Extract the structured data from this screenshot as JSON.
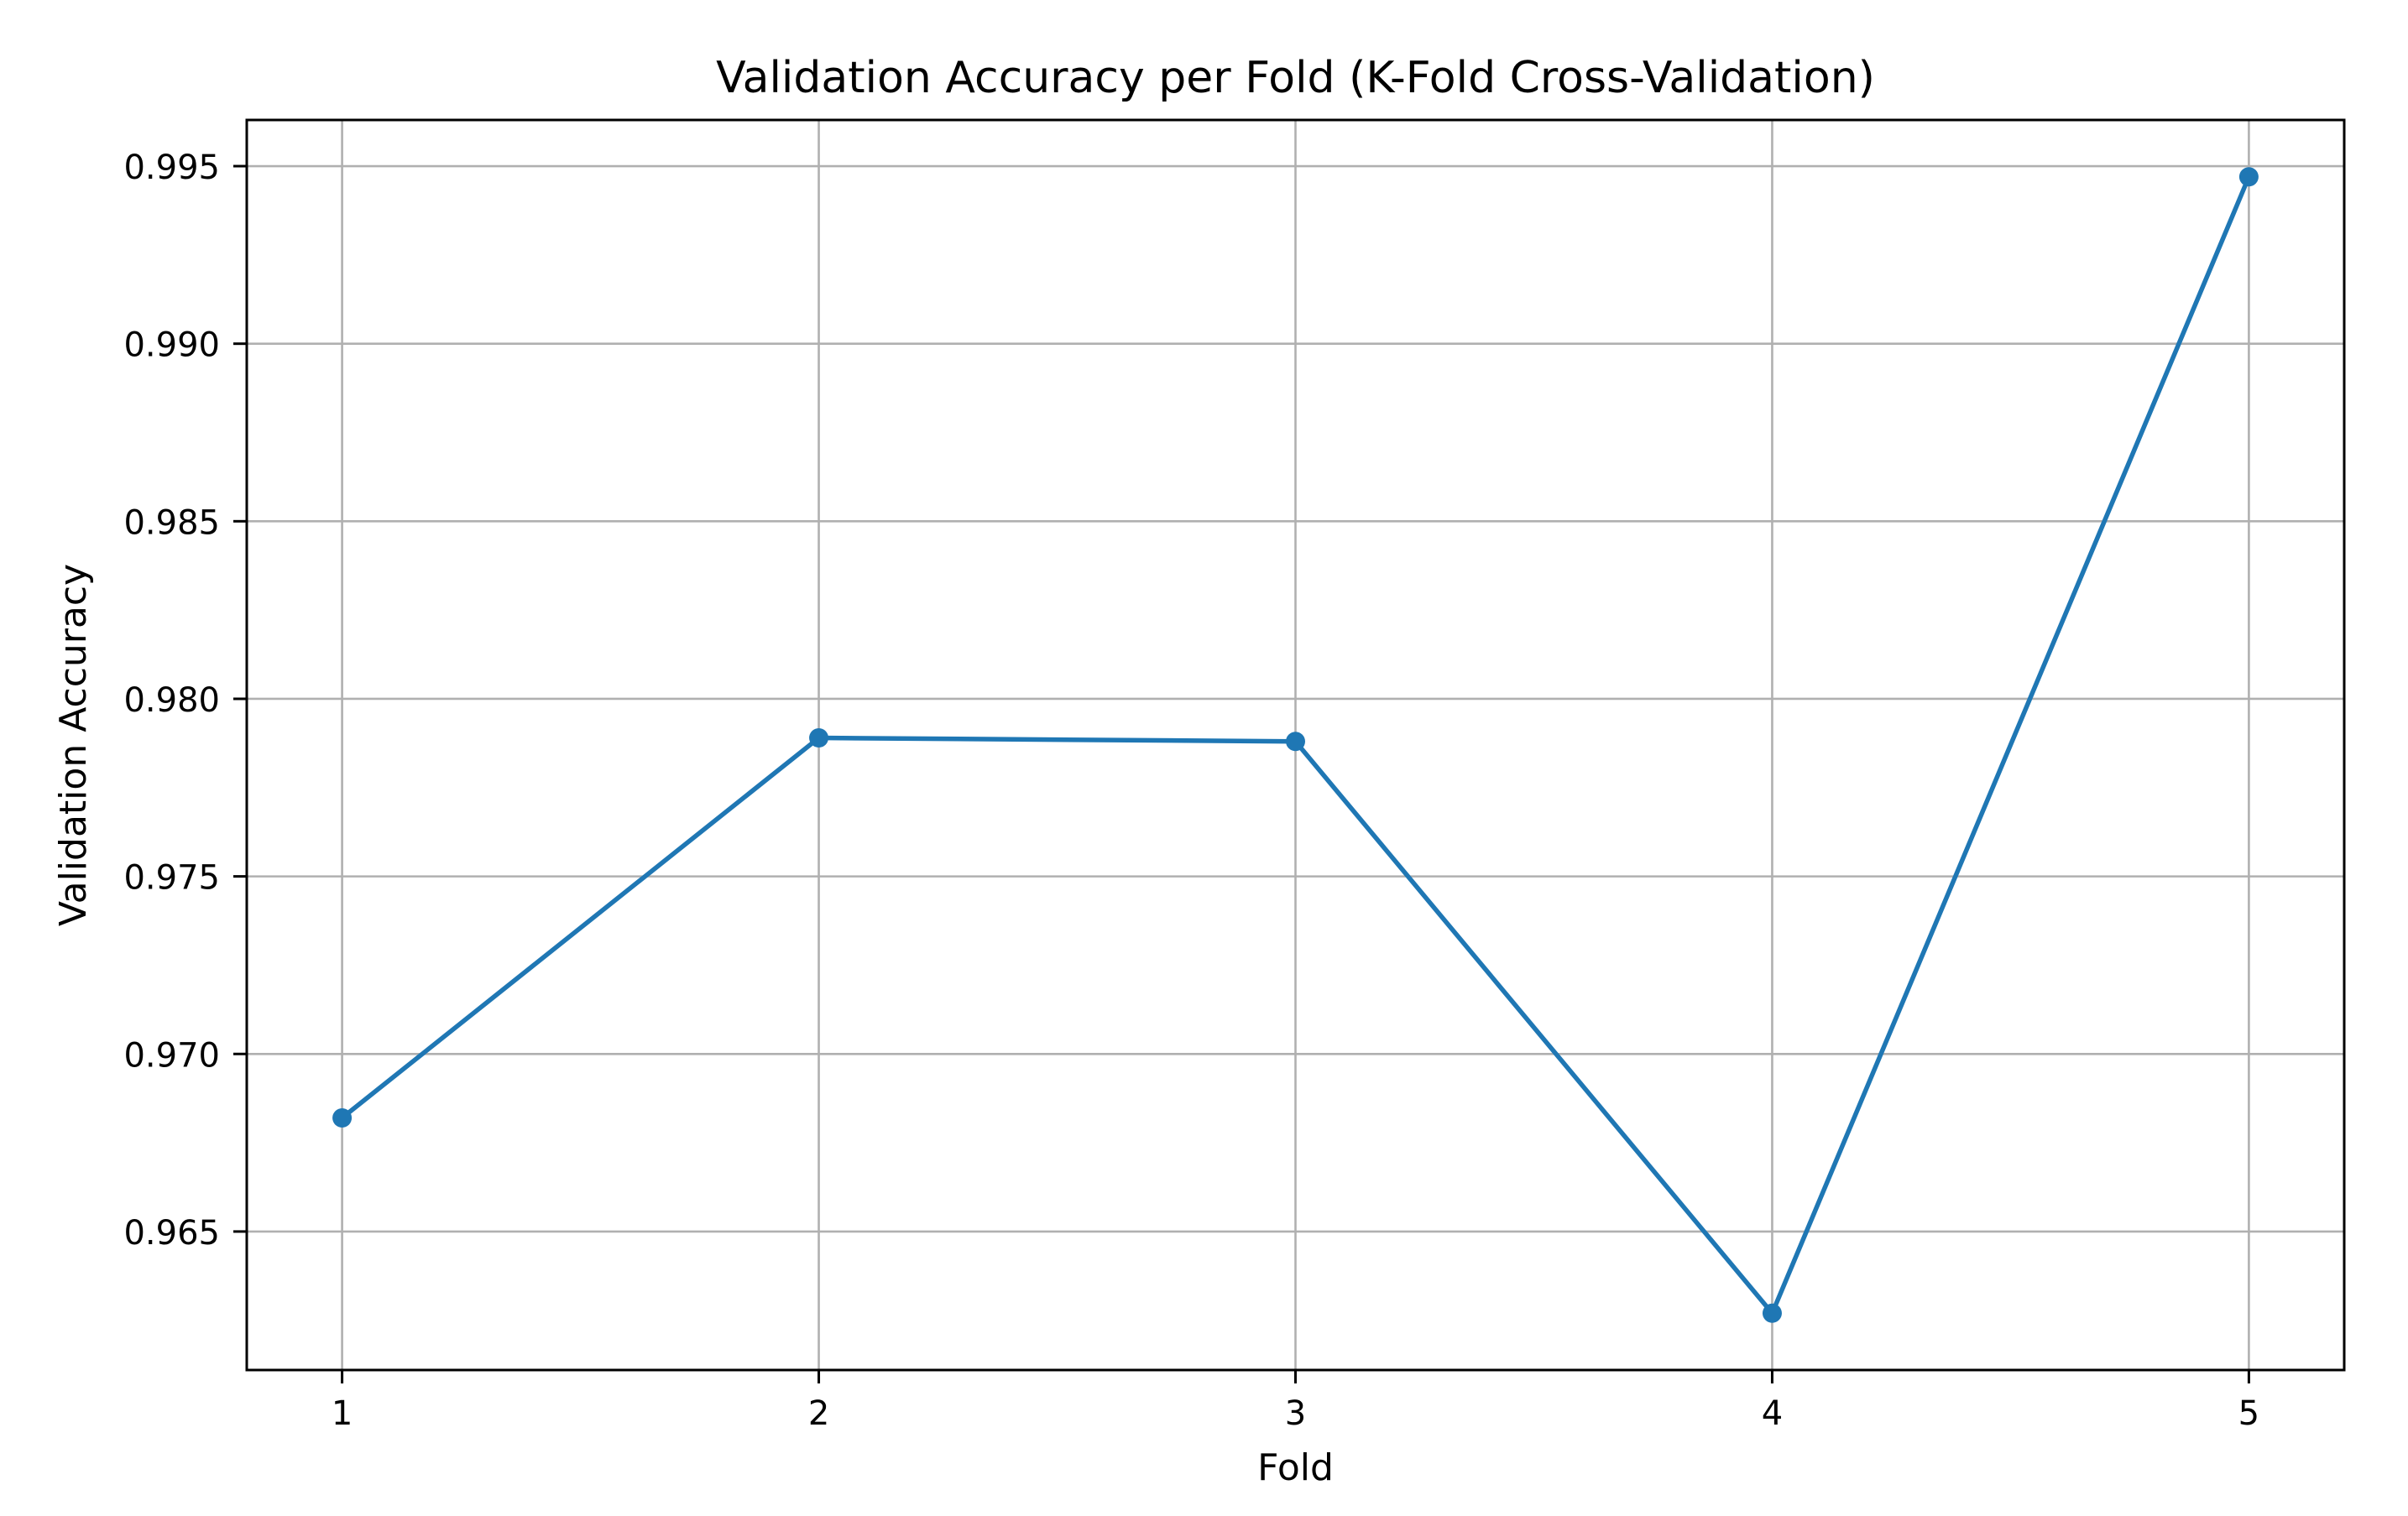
{
  "figure": {
    "background": "#ffffff"
  },
  "chart_data": {
    "type": "line",
    "title": "Validation Accuracy per Fold (K-Fold Cross-Validation)",
    "xlabel": "Fold",
    "ylabel": "Validation Accuracy",
    "x": [
      1,
      2,
      3,
      4,
      5
    ],
    "series": [
      {
        "name": "validation-accuracy",
        "values": [
          0.9682,
          0.9789,
          0.9788,
          0.9627,
          0.9947
        ],
        "color": "#1f77b4",
        "marker": "circle",
        "line_style": "solid"
      }
    ],
    "xticks": {
      "values": [
        1,
        2,
        3,
        4,
        5
      ],
      "labels": [
        "1",
        "2",
        "3",
        "4",
        "5"
      ]
    },
    "yticks": {
      "values": [
        0.965,
        0.97,
        0.975,
        0.98,
        0.985,
        0.99,
        0.995
      ],
      "labels": [
        "0.965",
        "0.970",
        "0.975",
        "0.980",
        "0.985",
        "0.990",
        "0.995"
      ]
    },
    "xlim": [
      0.8,
      5.2
    ],
    "ylim": [
      0.9611,
      0.9963
    ],
    "grid": true,
    "grid_color": "#b0b0b0",
    "spine_color": "#000000",
    "text_color": "#000000",
    "plot_background": "#ffffff",
    "legend_position": "none"
  }
}
